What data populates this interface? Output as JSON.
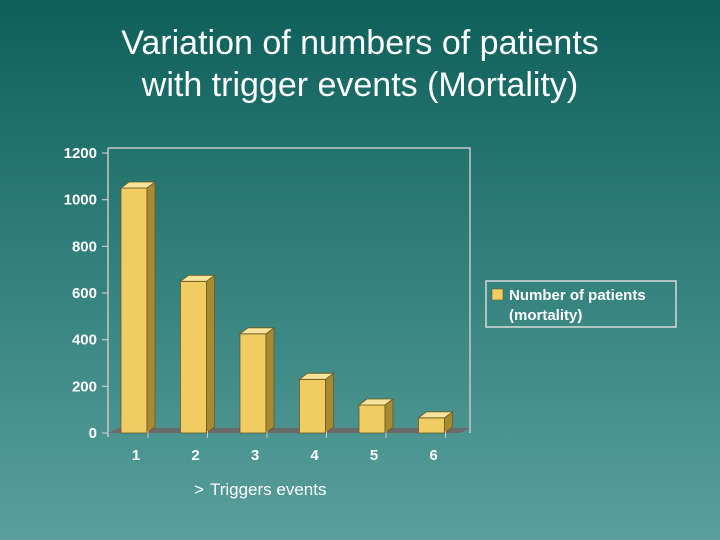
{
  "title_lines": [
    "Variation of numbers of patients",
    "with trigger events (Mortality)"
  ],
  "x_caption": {
    "arrow": ">",
    "text": "Triggers events"
  },
  "colors": {
    "bar_front": "#f0cc63",
    "bar_side": "#a88a33",
    "bar_top": "#f8e39a",
    "floor": "#6a6a6a",
    "axis": "#c8c8c8",
    "legend_border": "#d8d8d8"
  },
  "chart_data": {
    "type": "bar",
    "categories": [
      "1",
      "2",
      "3",
      "4",
      "5",
      "6"
    ],
    "series": [
      {
        "name": "Number of patients (mortality)",
        "values": [
          1050,
          650,
          425,
          230,
          120,
          65
        ]
      }
    ],
    "yticks": [
      "0",
      "200",
      "400",
      "600",
      "800",
      "1000",
      "1200"
    ],
    "ylim": [
      0,
      1200
    ],
    "title": "",
    "xlabel": "",
    "ylabel": "",
    "legend": {
      "position": "right",
      "lines": [
        "Number of patients",
        "(mortality)"
      ]
    },
    "grid": false
  }
}
